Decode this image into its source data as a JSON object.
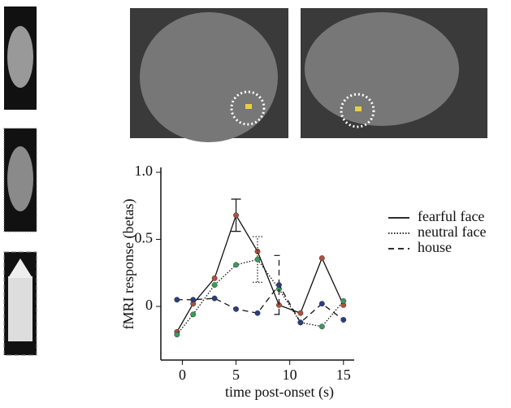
{
  "chart_data": {
    "type": "line",
    "xlabel": "time post-onset (s)",
    "ylabel": "fMRI response (betas)",
    "xlim": [
      -2,
      16
    ],
    "ylim": [
      -0.4,
      1.0
    ],
    "xticks": [
      0,
      5,
      10,
      15
    ],
    "yticks": [
      0,
      0.5,
      {
        "value": 1,
        "label": "1.0"
      }
    ],
    "x": [
      -0.5,
      1,
      3,
      5,
      7,
      9,
      11,
      13,
      15
    ],
    "series": [
      {
        "name": "fearful face",
        "color": "#b0503a",
        "line_style": "solid",
        "values": [
          -0.19,
          0.02,
          0.21,
          0.68,
          0.41,
          0.01,
          -0.05,
          0.36,
          0.01
        ],
        "errors": [
          null,
          null,
          null,
          0.12,
          null,
          null,
          null,
          null,
          null
        ]
      },
      {
        "name": "neutral face",
        "color": "#3a9a5a",
        "line_style": "dotted",
        "values": [
          -0.21,
          -0.06,
          0.16,
          0.31,
          0.35,
          0.13,
          -0.12,
          -0.15,
          0.04
        ],
        "errors": [
          null,
          null,
          null,
          null,
          0.17,
          null,
          null,
          null,
          null
        ]
      },
      {
        "name": "house",
        "color": "#2c3e80",
        "line_style": "dashed",
        "values": [
          0.05,
          0.05,
          0.06,
          -0.02,
          -0.05,
          0.16,
          -0.12,
          0.02,
          -0.1
        ],
        "errors": [
          null,
          null,
          null,
          null,
          null,
          0.22,
          null,
          null,
          null
        ]
      }
    ]
  }
}
